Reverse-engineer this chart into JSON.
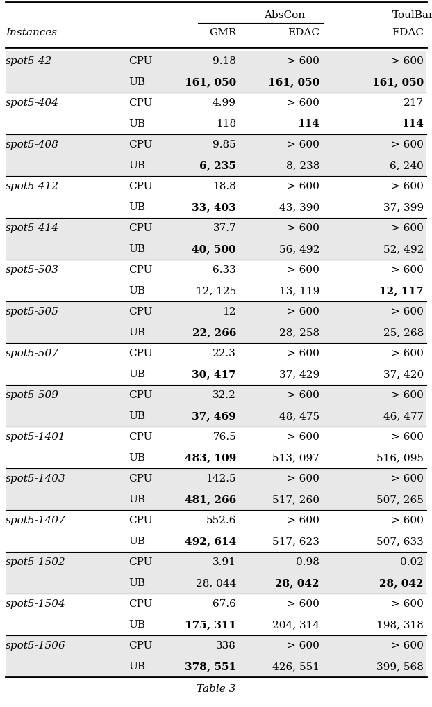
{
  "title": "Table 3",
  "rows": [
    {
      "instance": "spot5-42",
      "sub_rows": [
        [
          "CPU",
          "9.18",
          "> 600",
          "> 600"
        ],
        [
          "UB",
          "161, 050",
          "161, 050",
          "161, 050"
        ]
      ],
      "bold": [
        [
          false,
          false,
          false,
          false
        ],
        [
          false,
          true,
          true,
          true
        ]
      ]
    },
    {
      "instance": "spot5-404",
      "sub_rows": [
        [
          "CPU",
          "4.99",
          "> 600",
          "217"
        ],
        [
          "UB",
          "118",
          "114",
          "114"
        ]
      ],
      "bold": [
        [
          false,
          false,
          false,
          false
        ],
        [
          false,
          false,
          true,
          true
        ]
      ]
    },
    {
      "instance": "spot5-408",
      "sub_rows": [
        [
          "CPU",
          "9.85",
          "> 600",
          "> 600"
        ],
        [
          "UB",
          "6, 235",
          "8, 238",
          "6, 240"
        ]
      ],
      "bold": [
        [
          false,
          false,
          false,
          false
        ],
        [
          false,
          true,
          false,
          false
        ]
      ]
    },
    {
      "instance": "spot5-412",
      "sub_rows": [
        [
          "CPU",
          "18.8",
          "> 600",
          "> 600"
        ],
        [
          "UB",
          "33, 403",
          "43, 390",
          "37, 399"
        ]
      ],
      "bold": [
        [
          false,
          false,
          false,
          false
        ],
        [
          false,
          true,
          false,
          false
        ]
      ]
    },
    {
      "instance": "spot5-414",
      "sub_rows": [
        [
          "CPU",
          "37.7",
          "> 600",
          "> 600"
        ],
        [
          "UB",
          "40, 500",
          "56, 492",
          "52, 492"
        ]
      ],
      "bold": [
        [
          false,
          false,
          false,
          false
        ],
        [
          false,
          true,
          false,
          false
        ]
      ]
    },
    {
      "instance": "spot5-503",
      "sub_rows": [
        [
          "CPU",
          "6.33",
          "> 600",
          "> 600"
        ],
        [
          "UB",
          "12, 125",
          "13, 119",
          "12, 117"
        ]
      ],
      "bold": [
        [
          false,
          false,
          false,
          false
        ],
        [
          false,
          false,
          false,
          true
        ]
      ]
    },
    {
      "instance": "spot5-505",
      "sub_rows": [
        [
          "CPU",
          "12",
          "> 600",
          "> 600"
        ],
        [
          "UB",
          "22, 266",
          "28, 258",
          "25, 268"
        ]
      ],
      "bold": [
        [
          false,
          false,
          false,
          false
        ],
        [
          false,
          true,
          false,
          false
        ]
      ]
    },
    {
      "instance": "spot5-507",
      "sub_rows": [
        [
          "CPU",
          "22.3",
          "> 600",
          "> 600"
        ],
        [
          "UB",
          "30, 417",
          "37, 429",
          "37, 420"
        ]
      ],
      "bold": [
        [
          false,
          false,
          false,
          false
        ],
        [
          false,
          true,
          false,
          false
        ]
      ]
    },
    {
      "instance": "spot5-509",
      "sub_rows": [
        [
          "CPU",
          "32.2",
          "> 600",
          "> 600"
        ],
        [
          "UB",
          "37, 469",
          "48, 475",
          "46, 477"
        ]
      ],
      "bold": [
        [
          false,
          false,
          false,
          false
        ],
        [
          false,
          true,
          false,
          false
        ]
      ]
    },
    {
      "instance": "spot5-1401",
      "sub_rows": [
        [
          "CPU",
          "76.5",
          "> 600",
          "> 600"
        ],
        [
          "UB",
          "483, 109",
          "513, 097",
          "516, 095"
        ]
      ],
      "bold": [
        [
          false,
          false,
          false,
          false
        ],
        [
          false,
          true,
          false,
          false
        ]
      ]
    },
    {
      "instance": "spot5-1403",
      "sub_rows": [
        [
          "CPU",
          "142.5",
          "> 600",
          "> 600"
        ],
        [
          "UB",
          "481, 266",
          "517, 260",
          "507, 265"
        ]
      ],
      "bold": [
        [
          false,
          false,
          false,
          false
        ],
        [
          false,
          true,
          false,
          false
        ]
      ]
    },
    {
      "instance": "spot5-1407",
      "sub_rows": [
        [
          "CPU",
          "552.6",
          "> 600",
          "> 600"
        ],
        [
          "UB",
          "492, 614",
          "517, 623",
          "507, 633"
        ]
      ],
      "bold": [
        [
          false,
          false,
          false,
          false
        ],
        [
          false,
          true,
          false,
          false
        ]
      ]
    },
    {
      "instance": "spot5-1502",
      "sub_rows": [
        [
          "CPU",
          "3.91",
          "0.98",
          "0.02"
        ],
        [
          "UB",
          "28, 044",
          "28, 042",
          "28, 042"
        ]
      ],
      "bold": [
        [
          false,
          false,
          false,
          false
        ],
        [
          false,
          false,
          true,
          true
        ]
      ]
    },
    {
      "instance": "spot5-1504",
      "sub_rows": [
        [
          "CPU",
          "67.6",
          "> 600",
          "> 600"
        ],
        [
          "UB",
          "175, 311",
          "204, 314",
          "198, 318"
        ]
      ],
      "bold": [
        [
          false,
          false,
          false,
          false
        ],
        [
          false,
          true,
          false,
          false
        ]
      ]
    },
    {
      "instance": "spot5-1506",
      "sub_rows": [
        [
          "CPU",
          "338",
          "> 600",
          "> 600"
        ],
        [
          "UB",
          "378, 551",
          "426, 551",
          "399, 568"
        ]
      ],
      "bold": [
        [
          false,
          false,
          false,
          false
        ],
        [
          false,
          true,
          false,
          false
        ]
      ]
    }
  ],
  "bg_color_even": "#e8e8e8",
  "bg_color_odd": "#ffffff",
  "font_size": 11,
  "caption": "Table 3"
}
